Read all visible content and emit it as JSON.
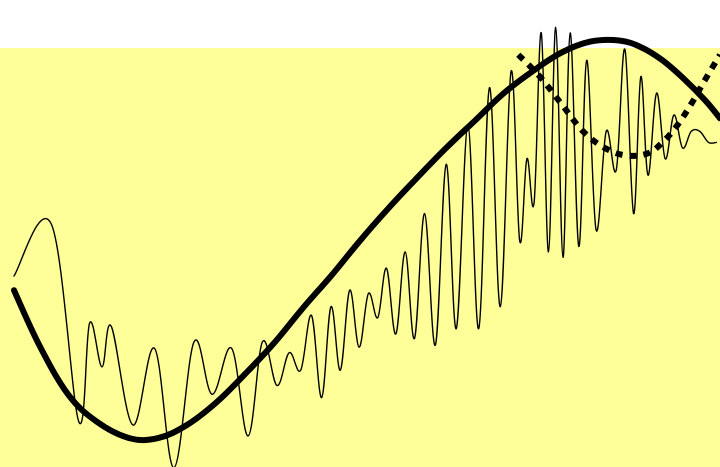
{
  "colors": {
    "background": "#ffffff",
    "plot_fill": "#ffff99",
    "ink": "#000000"
  },
  "chart_data": {
    "type": "line",
    "title": "",
    "xlabel": "",
    "ylabel": "",
    "axes_visible": false,
    "grid": false,
    "legend": "none",
    "xlim": [
      0,
      10
    ],
    "ylim": [
      -1.8,
      2.4
    ],
    "series": [
      {
        "style": "thin-oscillating",
        "color": "#000000",
        "x": [
          0.2,
          0.72,
          1.1,
          1.25,
          1.42,
          1.55,
          1.85,
          2.15,
          2.42,
          2.7,
          2.95,
          3.22,
          3.45,
          3.65,
          3.85,
          4.02,
          4.18,
          4.33,
          4.47,
          4.6,
          4.73,
          4.86,
          4.99,
          5.12,
          5.25,
          5.37,
          5.5,
          5.63,
          5.76,
          5.9,
          6.05,
          6.2,
          6.34,
          6.5,
          6.65,
          6.8,
          6.95,
          7.1,
          7.22,
          7.32,
          7.42,
          7.52,
          7.62,
          7.72,
          7.82,
          7.92,
          8.04,
          8.15,
          8.28,
          8.42,
          8.56,
          8.68,
          8.8,
          8.9,
          9.0,
          9.12,
          9.24,
          9.36,
          9.48,
          9.6,
          9.72,
          9.84,
          9.95
        ],
        "y": [
          -0.12,
          0.35,
          -1.45,
          -0.55,
          -0.95,
          -0.58,
          -1.48,
          -0.78,
          -1.87,
          -0.72,
          -1.2,
          -0.78,
          -1.58,
          -0.72,
          -1.12,
          -0.82,
          -0.98,
          -0.48,
          -1.23,
          -0.4,
          -0.98,
          -0.25,
          -0.77,
          -0.28,
          -0.5,
          -0.05,
          -0.65,
          0.1,
          -0.69,
          0.45,
          -0.75,
          0.9,
          -0.6,
          1.25,
          -0.6,
          1.6,
          -0.4,
          1.75,
          0.2,
          0.95,
          0.55,
          2.1,
          0.1,
          2.15,
          0.05,
          2.1,
          0.15,
          1.85,
          0.3,
          1.2,
          0.85,
          1.95,
          0.45,
          1.7,
          0.8,
          1.55,
          0.95,
          1.35,
          1.05,
          1.2,
          1.2,
          1.1,
          1.1
        ]
      },
      {
        "style": "thick-solid",
        "color": "#000000",
        "x": [
          0.2,
          0.55,
          0.95,
          1.35,
          1.8,
          2.2,
          2.6,
          3.0,
          3.4,
          3.8,
          4.2,
          4.6,
          5.0,
          5.4,
          5.8,
          6.2,
          6.6,
          7.0,
          7.4,
          7.8,
          8.2,
          8.6,
          8.9,
          9.2,
          9.5,
          9.8,
          10.0
        ],
        "y": [
          -0.25,
          -0.75,
          -1.2,
          -1.45,
          -1.6,
          -1.6,
          -1.48,
          -1.28,
          -1.02,
          -0.74,
          -0.42,
          -0.12,
          0.2,
          0.5,
          0.78,
          1.05,
          1.3,
          1.55,
          1.75,
          1.92,
          2.02,
          2.03,
          1.97,
          1.85,
          1.68,
          1.48,
          1.32
        ]
      },
      {
        "style": "thick-dotted",
        "color": "#000000",
        "x": [
          7.2,
          7.5,
          7.8,
          8.1,
          8.4,
          8.7,
          9.0,
          9.2,
          9.4,
          9.6,
          9.8,
          10.0
        ],
        "y": [
          1.9,
          1.7,
          1.45,
          1.2,
          1.05,
          0.98,
          1.0,
          1.1,
          1.25,
          1.45,
          1.68,
          1.9
        ]
      }
    ]
  }
}
